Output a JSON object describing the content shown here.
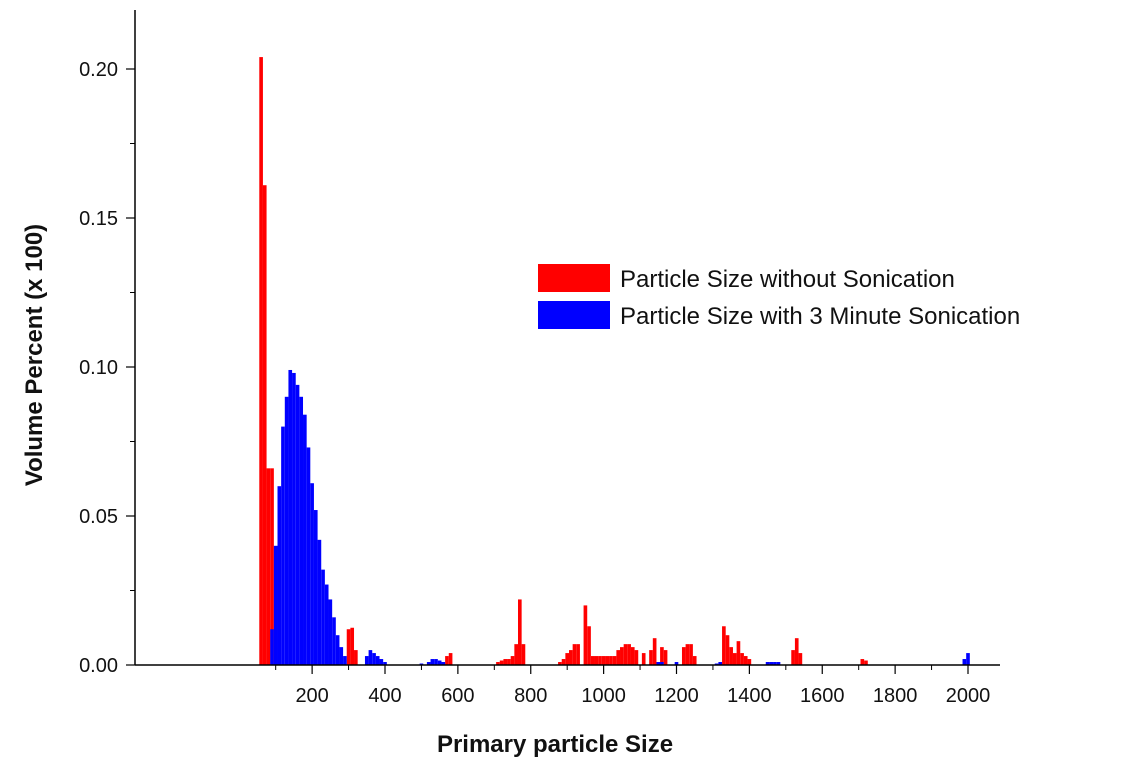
{
  "chart_data": {
    "type": "bar",
    "xlabel": "Primary particle Size",
    "ylabel": "Volume Percent (x 100)",
    "xlim": [
      20,
      2000
    ],
    "ylim": [
      0,
      0.21
    ],
    "x_ticks": [
      200,
      400,
      600,
      800,
      1000,
      1200,
      1400,
      1600,
      1800,
      2000
    ],
    "x_tick_labels": [
      "200",
      "400",
      "600",
      "800",
      "1000",
      "1200",
      "1400",
      "1600",
      "1800",
      "2000"
    ],
    "y_ticks": [
      0,
      0.05,
      0.1,
      0.15,
      0.2
    ],
    "y_tick_labels": [
      "0.00",
      "0.05",
      "0.10",
      "0.15",
      "0.20"
    ],
    "grid": false,
    "legend_position": "right",
    "series": [
      {
        "name": "Particle Size without Sonication",
        "color": "#ff0000",
        "points": [
          [
            60,
            0.204
          ],
          [
            70,
            0.161
          ],
          [
            80,
            0.066
          ],
          [
            90,
            0.066
          ],
          [
            300,
            0.012
          ],
          [
            310,
            0.0125
          ],
          [
            320,
            0.005
          ],
          [
            570,
            0.003
          ],
          [
            580,
            0.004
          ],
          [
            710,
            0.001
          ],
          [
            720,
            0.0015
          ],
          [
            730,
            0.002
          ],
          [
            740,
            0.002
          ],
          [
            750,
            0.003
          ],
          [
            760,
            0.007
          ],
          [
            770,
            0.022
          ],
          [
            780,
            0.007
          ],
          [
            880,
            0.001
          ],
          [
            890,
            0.002
          ],
          [
            900,
            0.004
          ],
          [
            910,
            0.005
          ],
          [
            920,
            0.007
          ],
          [
            930,
            0.007
          ],
          [
            950,
            0.02
          ],
          [
            960,
            0.013
          ],
          [
            970,
            0.003
          ],
          [
            980,
            0.003
          ],
          [
            990,
            0.003
          ],
          [
            1000,
            0.003
          ],
          [
            1010,
            0.003
          ],
          [
            1020,
            0.003
          ],
          [
            1030,
            0.003
          ],
          [
            1040,
            0.005
          ],
          [
            1050,
            0.006
          ],
          [
            1060,
            0.007
          ],
          [
            1070,
            0.007
          ],
          [
            1080,
            0.006
          ],
          [
            1090,
            0.005
          ],
          [
            1110,
            0.004
          ],
          [
            1130,
            0.005
          ],
          [
            1140,
            0.009
          ],
          [
            1160,
            0.006
          ],
          [
            1170,
            0.005
          ],
          [
            1220,
            0.006
          ],
          [
            1230,
            0.007
          ],
          [
            1240,
            0.007
          ],
          [
            1250,
            0.003
          ],
          [
            1330,
            0.013
          ],
          [
            1340,
            0.01
          ],
          [
            1350,
            0.006
          ],
          [
            1360,
            0.004
          ],
          [
            1370,
            0.008
          ],
          [
            1380,
            0.004
          ],
          [
            1390,
            0.003
          ],
          [
            1400,
            0.002
          ],
          [
            1520,
            0.005
          ],
          [
            1530,
            0.009
          ],
          [
            1540,
            0.004
          ],
          [
            1710,
            0.002
          ],
          [
            1720,
            0.0015
          ]
        ]
      },
      {
        "name": "Particle Size with 3 Minute Sonication",
        "color": "#0000ff",
        "points": [
          [
            90,
            0.012
          ],
          [
            100,
            0.04
          ],
          [
            110,
            0.06
          ],
          [
            120,
            0.08
          ],
          [
            130,
            0.09
          ],
          [
            140,
            0.099
          ],
          [
            150,
            0.098
          ],
          [
            160,
            0.094
          ],
          [
            170,
            0.09
          ],
          [
            180,
            0.084
          ],
          [
            190,
            0.073
          ],
          [
            200,
            0.061
          ],
          [
            210,
            0.052
          ],
          [
            220,
            0.042
          ],
          [
            230,
            0.032
          ],
          [
            240,
            0.027
          ],
          [
            250,
            0.022
          ],
          [
            260,
            0.016
          ],
          [
            270,
            0.01
          ],
          [
            280,
            0.006
          ],
          [
            290,
            0.003
          ],
          [
            350,
            0.003
          ],
          [
            360,
            0.005
          ],
          [
            370,
            0.004
          ],
          [
            380,
            0.003
          ],
          [
            390,
            0.002
          ],
          [
            400,
            0.001
          ],
          [
            500,
            0.0005
          ],
          [
            520,
            0.001
          ],
          [
            530,
            0.002
          ],
          [
            540,
            0.002
          ],
          [
            550,
            0.0015
          ],
          [
            560,
            0.001
          ],
          [
            1150,
            0.001
          ],
          [
            1160,
            0.001
          ],
          [
            1200,
            0.001
          ],
          [
            1310,
            0.0005
          ],
          [
            1320,
            0.001
          ],
          [
            1450,
            0.001
          ],
          [
            1460,
            0.001
          ],
          [
            1470,
            0.001
          ],
          [
            1480,
            0.001
          ],
          [
            1990,
            0.002
          ],
          [
            2000,
            0.004
          ]
        ]
      }
    ]
  }
}
